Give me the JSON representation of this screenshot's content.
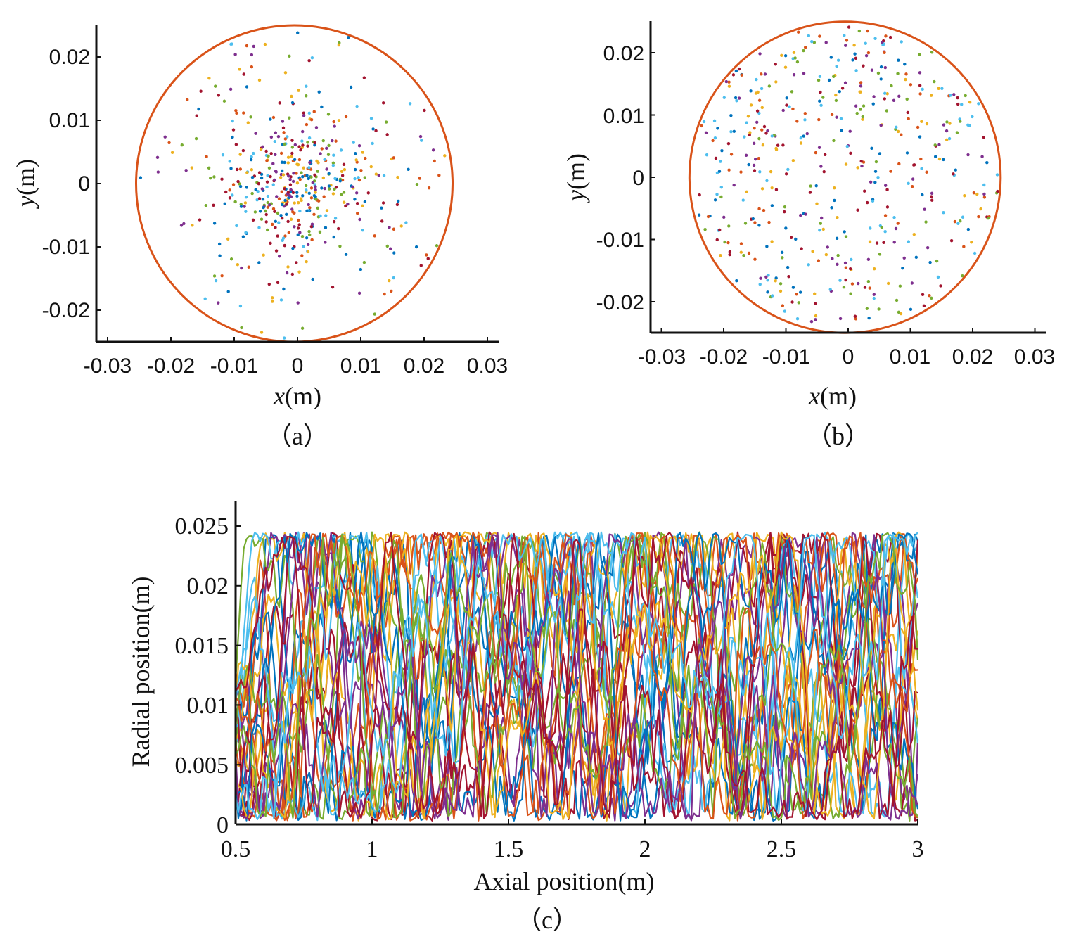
{
  "colors": {
    "boundary": "#d95319",
    "axis": "#111111",
    "series": [
      "#0072bd",
      "#d95319",
      "#edb120",
      "#7e2f8e",
      "#77ac30",
      "#4dbeee",
      "#a2142f"
    ]
  },
  "chart_data": [
    {
      "id": "a",
      "type": "scatter",
      "caption": "（a）",
      "xlabel_var": "x",
      "xlabel_unit": "(m)",
      "ylabel_var": "y",
      "ylabel_unit": "(m)",
      "xlim": [
        -0.032,
        0.032
      ],
      "ylim": [
        -0.025,
        0.025
      ],
      "xticks": [
        -0.03,
        -0.02,
        -0.01,
        0,
        0.01,
        0.02,
        0.03
      ],
      "xtick_labels": [
        "-0.03",
        "-0.02",
        "-0.01",
        "0",
        "0.01",
        "0.02",
        "0.03"
      ],
      "yticks": [
        -0.02,
        -0.01,
        0,
        0.01,
        0.02
      ],
      "ytick_labels": [
        "-0.02",
        "-0.01",
        "0",
        "0.01",
        "0.02"
      ],
      "boundary_circle": {
        "center": [
          -0.0005,
          0
        ],
        "radius": 0.025
      },
      "distribution": "concentrated toward center",
      "point_count": 520
    },
    {
      "id": "b",
      "type": "scatter",
      "caption": "（b）",
      "xlabel_var": "x",
      "xlabel_unit": "(m)",
      "ylabel_var": "y",
      "ylabel_unit": "(m)",
      "xlim": [
        -0.032,
        0.032
      ],
      "ylim": [
        -0.025,
        0.025
      ],
      "xticks": [
        -0.03,
        -0.02,
        -0.01,
        0,
        0.01,
        0.02,
        0.03
      ],
      "xtick_labels": [
        "-0.03",
        "-0.02",
        "-0.01",
        "0",
        "0.01",
        "0.02",
        "0.03"
      ],
      "yticks": [
        -0.02,
        -0.01,
        0,
        0.01,
        0.02
      ],
      "ytick_labels": [
        "-0.02",
        "-0.01",
        "0",
        "0.01",
        "0.02"
      ],
      "boundary_circle": {
        "center": [
          -0.0005,
          0
        ],
        "radius": 0.025
      },
      "distribution": "uniform across cross-section",
      "point_count": 480
    },
    {
      "id": "c",
      "type": "line",
      "caption": "（c）",
      "xlabel": "Axial position(m)",
      "ylabel": "Radial position(m)",
      "xlim": [
        0.5,
        3
      ],
      "ylim": [
        0,
        0.027
      ],
      "xticks": [
        0.5,
        1,
        1.5,
        2,
        2.5,
        3
      ],
      "xtick_labels": [
        "0.5",
        "1",
        "1.5",
        "2",
        "2.5",
        "3"
      ],
      "yticks": [
        0,
        0.005,
        0.01,
        0.015,
        0.02,
        0.025
      ],
      "ytick_labels": [
        "0",
        "0.005",
        "0.01",
        "0.015",
        "0.02",
        "0.025"
      ],
      "series_count": 28,
      "samples_per_series": 250,
      "radial_max": 0.0245
    }
  ]
}
